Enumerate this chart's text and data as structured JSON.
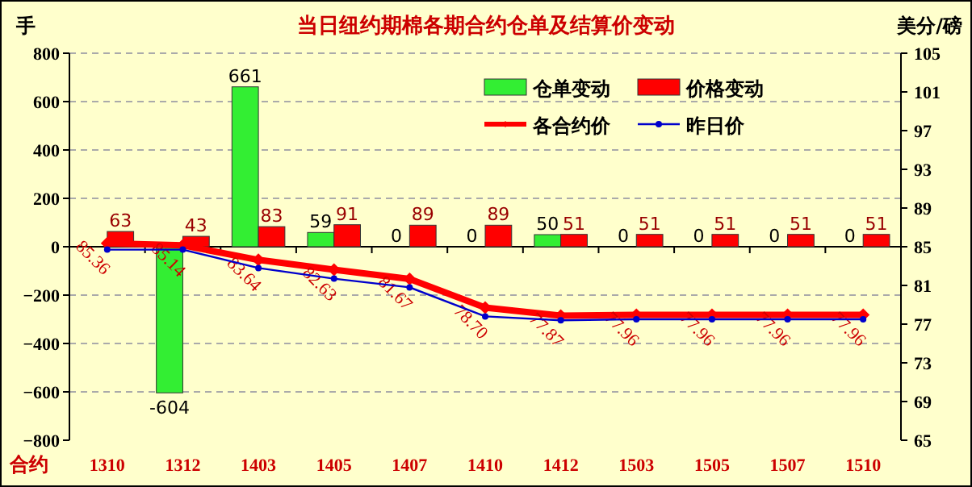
{
  "chart_data": {
    "type": "bar",
    "title": "当日纽约期棉各期合约仓单及结算价变动",
    "xlabel": "合约",
    "ylabel": "手",
    "y2label": "美分/磅",
    "categories": [
      "1310",
      "1312",
      "1403",
      "1405",
      "1407",
      "1410",
      "1412",
      "1503",
      "1505",
      "1507",
      "1510"
    ],
    "series": [
      {
        "name": "仓单变动",
        "color": "#33ee33",
        "values": [
          0,
          -604,
          661,
          59,
          0,
          0,
          50,
          0,
          0,
          0,
          0
        ],
        "value_labels": [
          null,
          "-604",
          "661",
          "59",
          "0",
          "0",
          "50",
          "0",
          "0",
          "0",
          "0"
        ]
      },
      {
        "name": "价格变动",
        "color": "#ff0000",
        "values": [
          63,
          43,
          83,
          91,
          89,
          89,
          51,
          51,
          51,
          51,
          51
        ],
        "value_labels": [
          "63",
          "43",
          "83",
          "91",
          "89",
          "89",
          "51",
          "51",
          "51",
          "51",
          "51"
        ]
      },
      {
        "name": "各合约价",
        "type": "line",
        "axis": "y2",
        "color": "#ff0000",
        "marker": "diamond",
        "values": [
          85.36,
          85.14,
          83.64,
          82.63,
          81.67,
          78.7,
          77.87,
          77.96,
          77.96,
          77.96,
          77.96
        ],
        "value_labels": [
          "85.36",
          "85.14",
          "83.64",
          "82.63",
          "81.67",
          "78.70",
          "77.87",
          "77.96",
          "77.96",
          "77.96",
          "77.96"
        ]
      },
      {
        "name": "昨日价",
        "type": "line",
        "axis": "y2",
        "color": "#0000cc",
        "marker": "circle",
        "values": [
          84.7,
          84.7,
          82.8,
          81.7,
          80.8,
          77.8,
          77.4,
          77.5,
          77.5,
          77.5,
          77.5
        ]
      }
    ],
    "ylim": [
      -800,
      800
    ],
    "yticks": [
      -800,
      -600,
      -400,
      -200,
      0,
      200,
      400,
      600,
      800
    ],
    "y2lim": [
      65,
      105
    ],
    "y2ticks": [
      65,
      69,
      73,
      77,
      81,
      85,
      89,
      93,
      97,
      101,
      105
    ],
    "grid": "y",
    "legend": "top right"
  }
}
